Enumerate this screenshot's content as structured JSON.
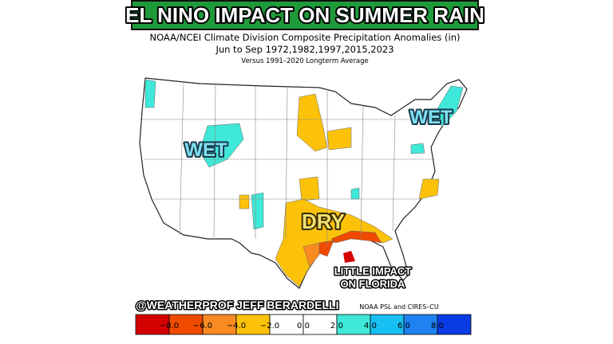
{
  "header": {
    "title": "EL NINO IMPACT ON SUMMER RAIN",
    "subtitle": [
      "NOAA/NCEI Climate Division Composite Precipitation Anomalies (in)",
      "Jun to Sep  1972,1982,1997,2015,2023",
      "Versus 1991–2020 Longterm Average"
    ]
  },
  "annotations": {
    "wet_west": "WET",
    "wet_east": "WET",
    "dry": "DRY",
    "florida": [
      "LITTLE IMPACT",
      "ON FLORIDA"
    ]
  },
  "credit": "@WEATHERPROF JEFF BERARDELLI",
  "source": "NOAA PSL and CIRES–CU",
  "legend": {
    "colors": [
      "#d40000",
      "#f04a00",
      "#fa8a22",
      "#fcc20a",
      "#ffffff",
      "#ffffff",
      "#3fe8d8",
      "#18bff2",
      "#1e82f0",
      "#0a3ce6"
    ],
    "ticks": [
      "−8.0",
      "−6.0",
      "−4.0",
      "−2.0",
      "0.0",
      "2.0",
      "4.0",
      "6.0",
      "8.0"
    ]
  }
}
